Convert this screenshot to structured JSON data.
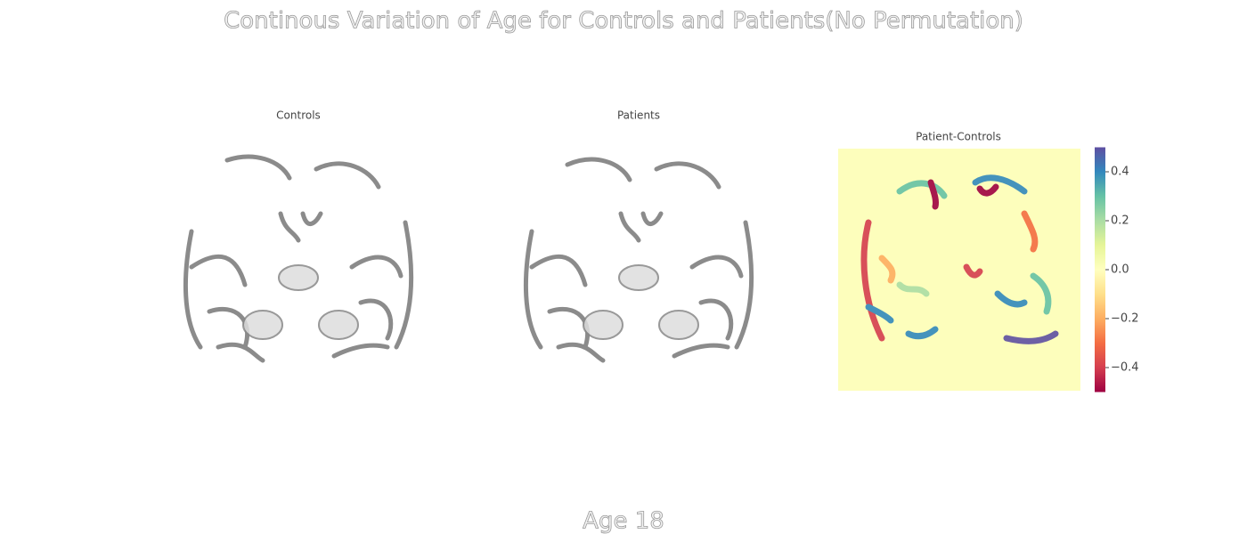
{
  "chart_data": {
    "type": "heatmap",
    "title": "Continous Variation of Age for Controls and Patients(No Permutation)",
    "panels": [
      {
        "title": "Controls"
      },
      {
        "title": "Patients"
      },
      {
        "title": "Patient-Controls"
      }
    ],
    "colorbar": {
      "lim": [
        -0.5,
        0.5
      ],
      "ticks": [
        {
          "value": -0.4,
          "label": "−0.4"
        },
        {
          "value": -0.2,
          "label": "−0.2"
        },
        {
          "value": 0,
          "label": "0.0"
        },
        0.2,
        0.4
      ],
      "colormap": [
        "#9e0142",
        "#d53e4f",
        "#f46d43",
        "#fdae61",
        "#fee08b",
        "#ffffbf",
        "#e6f598",
        "#abdda4",
        "#66c2a5",
        "#3288bd",
        "#5e4fa2"
      ]
    },
    "footer": "Age 18"
  }
}
